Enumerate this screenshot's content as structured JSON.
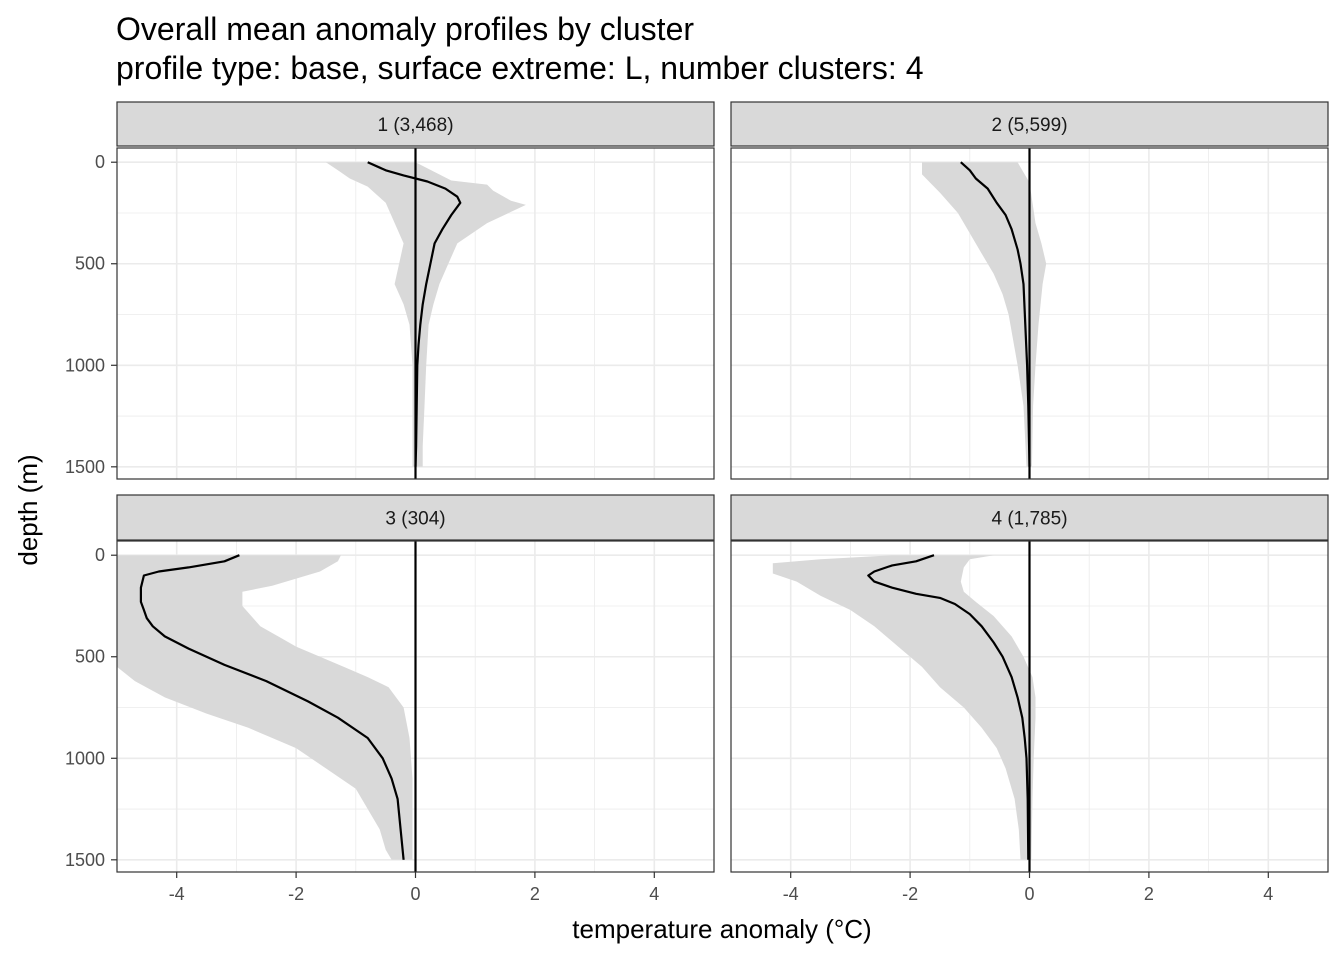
{
  "chart_data": {
    "type": "line",
    "title": "Overall mean anomaly profiles by cluster",
    "subtitle": "profile type: base, surface extreme: L, number clusters: 4",
    "xlabel": "temperature anomaly (°C)",
    "ylabel": "depth (m)",
    "xlim": [
      -5,
      5
    ],
    "ylim": [
      1560,
      -70
    ],
    "y_reversed": true,
    "x_ticks": [
      -4,
      -2,
      0,
      2,
      4
    ],
    "y_ticks": [
      0,
      500,
      1000,
      1500
    ],
    "grid": true,
    "reference_line_x": 0,
    "line_color": "#000000",
    "band_color": "#d9d9d9",
    "strip_color": "#d9d9d9",
    "panels": [
      {
        "label": "1 (3,468)",
        "mean": [
          [
            -0.8,
            0
          ],
          [
            -0.5,
            40
          ],
          [
            -0.2,
            65
          ],
          [
            0.2,
            95
          ],
          [
            0.5,
            130
          ],
          [
            0.7,
            170
          ],
          [
            0.75,
            200
          ],
          [
            0.6,
            260
          ],
          [
            0.45,
            330
          ],
          [
            0.32,
            400
          ],
          [
            0.25,
            500
          ],
          [
            0.18,
            600
          ],
          [
            0.12,
            700
          ],
          [
            0.08,
            800
          ],
          [
            0.05,
            900
          ],
          [
            0.03,
            1000
          ],
          [
            0.02,
            1200
          ],
          [
            0.01,
            1400
          ],
          [
            0.0,
            1500
          ]
        ],
        "band_upper": [
          [
            0.0,
            0
          ],
          [
            0.6,
            90
          ],
          [
            1.2,
            110
          ],
          [
            1.3,
            140
          ],
          [
            1.6,
            190
          ],
          [
            1.85,
            210
          ],
          [
            1.2,
            300
          ],
          [
            0.7,
            400
          ],
          [
            0.55,
            500
          ],
          [
            0.4,
            600
          ],
          [
            0.3,
            700
          ],
          [
            0.22,
            800
          ],
          [
            0.18,
            1000
          ],
          [
            0.15,
            1200
          ],
          [
            0.12,
            1400
          ],
          [
            0.12,
            1500
          ]
        ],
        "band_lower": [
          [
            -1.5,
            0
          ],
          [
            -1.3,
            40
          ],
          [
            -1.1,
            80
          ],
          [
            -0.8,
            120
          ],
          [
            -0.5,
            200
          ],
          [
            -0.2,
            400
          ],
          [
            -0.35,
            600
          ],
          [
            -0.2,
            700
          ],
          [
            -0.1,
            800
          ],
          [
            -0.05,
            1000
          ],
          [
            -0.05,
            1200
          ],
          [
            -0.05,
            1400
          ],
          [
            -0.05,
            1500
          ]
        ]
      },
      {
        "label": "2 (5,599)",
        "mean": [
          [
            -1.15,
            0
          ],
          [
            -1.0,
            40
          ],
          [
            -0.9,
            80
          ],
          [
            -0.7,
            130
          ],
          [
            -0.55,
            200
          ],
          [
            -0.4,
            260
          ],
          [
            -0.3,
            330
          ],
          [
            -0.2,
            430
          ],
          [
            -0.15,
            500
          ],
          [
            -0.1,
            600
          ],
          [
            -0.07,
            800
          ],
          [
            -0.04,
            1000
          ],
          [
            -0.02,
            1200
          ],
          [
            0.0,
            1500
          ]
        ],
        "band_upper": [
          [
            -0.2,
            0
          ],
          [
            -0.1,
            50
          ],
          [
            0.0,
            100
          ],
          [
            0.1,
            300
          ],
          [
            0.2,
            400
          ],
          [
            0.28,
            500
          ],
          [
            0.22,
            600
          ],
          [
            0.15,
            800
          ],
          [
            0.1,
            1000
          ],
          [
            0.06,
            1200
          ],
          [
            0.04,
            1500
          ]
        ],
        "band_lower": [
          [
            -1.8,
            0
          ],
          [
            -1.8,
            60
          ],
          [
            -1.5,
            150
          ],
          [
            -1.2,
            250
          ],
          [
            -1.0,
            350
          ],
          [
            -0.8,
            450
          ],
          [
            -0.6,
            550
          ],
          [
            -0.45,
            650
          ],
          [
            -0.35,
            750
          ],
          [
            -0.2,
            1000
          ],
          [
            -0.1,
            1200
          ],
          [
            -0.05,
            1500
          ]
        ]
      },
      {
        "label": "3 (304)",
        "mean": [
          [
            -2.95,
            0
          ],
          [
            -3.2,
            30
          ],
          [
            -3.8,
            60
          ],
          [
            -4.3,
            80
          ],
          [
            -4.55,
            100
          ],
          [
            -4.6,
            160
          ],
          [
            -4.6,
            230
          ],
          [
            -4.55,
            270
          ],
          [
            -4.5,
            310
          ],
          [
            -4.4,
            350
          ],
          [
            -4.2,
            400
          ],
          [
            -3.8,
            460
          ],
          [
            -3.2,
            540
          ],
          [
            -2.5,
            620
          ],
          [
            -1.8,
            720
          ],
          [
            -1.3,
            800
          ],
          [
            -0.8,
            900
          ],
          [
            -0.55,
            1000
          ],
          [
            -0.4,
            1100
          ],
          [
            -0.3,
            1200
          ],
          [
            -0.25,
            1350
          ],
          [
            -0.2,
            1500
          ]
        ],
        "band_upper": [
          [
            -1.25,
            0
          ],
          [
            -1.3,
            30
          ],
          [
            -1.6,
            80
          ],
          [
            -2.4,
            150
          ],
          [
            -2.9,
            180
          ],
          [
            -2.9,
            250
          ],
          [
            -2.6,
            350
          ],
          [
            -2.3,
            400
          ],
          [
            -2.0,
            450
          ],
          [
            -1.6,
            500
          ],
          [
            -1.2,
            550
          ],
          [
            -0.8,
            600
          ],
          [
            -0.45,
            650
          ],
          [
            -0.2,
            750
          ],
          [
            -0.1,
            900
          ],
          [
            -0.05,
            1100
          ],
          [
            -0.05,
            1300
          ],
          [
            -0.05,
            1500
          ]
        ],
        "band_lower": [
          [
            -5,
            0
          ],
          [
            -5,
            550
          ],
          [
            -4.7,
            620
          ],
          [
            -4.2,
            700
          ],
          [
            -3.5,
            780
          ],
          [
            -2.8,
            850
          ],
          [
            -2.0,
            950
          ],
          [
            -1.5,
            1050
          ],
          [
            -1.0,
            1150
          ],
          [
            -0.8,
            1250
          ],
          [
            -0.6,
            1350
          ],
          [
            -0.5,
            1450
          ],
          [
            -0.4,
            1500
          ]
        ]
      },
      {
        "label": "4 (1,785)",
        "mean": [
          [
            -1.6,
            0
          ],
          [
            -1.9,
            30
          ],
          [
            -2.3,
            50
          ],
          [
            -2.6,
            80
          ],
          [
            -2.7,
            100
          ],
          [
            -2.6,
            130
          ],
          [
            -2.3,
            160
          ],
          [
            -1.9,
            190
          ],
          [
            -1.5,
            210
          ],
          [
            -1.25,
            240
          ],
          [
            -1.0,
            290
          ],
          [
            -0.8,
            350
          ],
          [
            -0.6,
            430
          ],
          [
            -0.45,
            500
          ],
          [
            -0.3,
            600
          ],
          [
            -0.2,
            700
          ],
          [
            -0.12,
            800
          ],
          [
            -0.08,
            900
          ],
          [
            -0.05,
            1000
          ],
          [
            -0.03,
            1200
          ],
          [
            -0.02,
            1500
          ]
        ],
        "band_upper": [
          [
            -0.6,
            0
          ],
          [
            -1.0,
            20
          ],
          [
            -1.1,
            60
          ],
          [
            -1.15,
            130
          ],
          [
            -1.1,
            180
          ],
          [
            -0.9,
            230
          ],
          [
            -0.6,
            300
          ],
          [
            -0.3,
            400
          ],
          [
            -0.1,
            500
          ],
          [
            0.05,
            600
          ],
          [
            0.1,
            700
          ],
          [
            0.1,
            800
          ],
          [
            0.07,
            1000
          ],
          [
            0.05,
            1200
          ],
          [
            0.03,
            1500
          ]
        ],
        "band_lower": [
          [
            -2.3,
            0
          ],
          [
            -3.5,
            20
          ],
          [
            -4.3,
            40
          ],
          [
            -4.3,
            90
          ],
          [
            -3.9,
            130
          ],
          [
            -3.5,
            200
          ],
          [
            -3.0,
            270
          ],
          [
            -2.6,
            350
          ],
          [
            -2.2,
            450
          ],
          [
            -1.8,
            550
          ],
          [
            -1.5,
            650
          ],
          [
            -1.1,
            750
          ],
          [
            -0.8,
            850
          ],
          [
            -0.55,
            950
          ],
          [
            -0.4,
            1050
          ],
          [
            -0.25,
            1200
          ],
          [
            -0.18,
            1350
          ],
          [
            -0.15,
            1500
          ]
        ]
      }
    ]
  }
}
